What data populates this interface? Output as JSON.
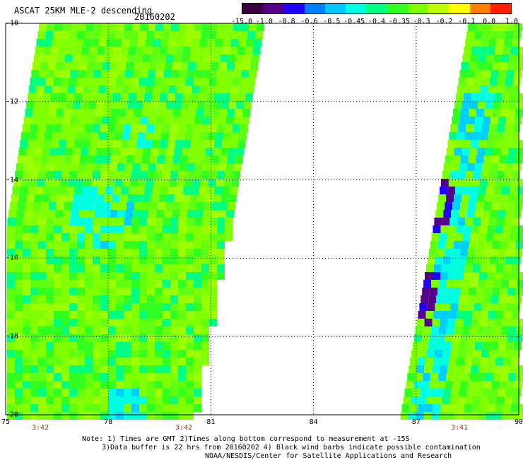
{
  "header": {
    "title": "ASCAT 25KM MLE-2 descending",
    "date": "20160202"
  },
  "colorbar": {
    "labels": [
      "-15.0",
      "-1.0",
      "-0.8",
      "-0.6",
      "-0.5",
      "-0.45",
      "-0.4",
      "-0.35",
      "-0.3",
      "-0.2",
      "-0.1",
      "0.0",
      "1.0"
    ],
    "colors": [
      "#3a0040",
      "#55008a",
      "#2000ff",
      "#0080ff",
      "#00c8ff",
      "#00ffe0",
      "#00ff80",
      "#30ff20",
      "#80ff00",
      "#c0ff00",
      "#ffff00",
      "#ff8000",
      "#ff2000"
    ]
  },
  "axes": {
    "lat_labels": [
      "-10",
      "-12",
      "-14",
      "-16",
      "-18",
      "-20"
    ],
    "lon_labels": [
      "75",
      "78",
      "81",
      "84",
      "87",
      "90"
    ]
  },
  "times": [
    "3:42",
    "3:42",
    "3:41"
  ],
  "notes": {
    "line1": "Note: 1) Times are GMT 2)Times along bottom correspond to measurement at -15S",
    "line2": "3)Data buffer is 22 hrs from 20160202 4) Black wind barbs indicate possible contamination",
    "line3": "NOAA/NESDIS/Center for Satellite Applications and Research"
  }
}
